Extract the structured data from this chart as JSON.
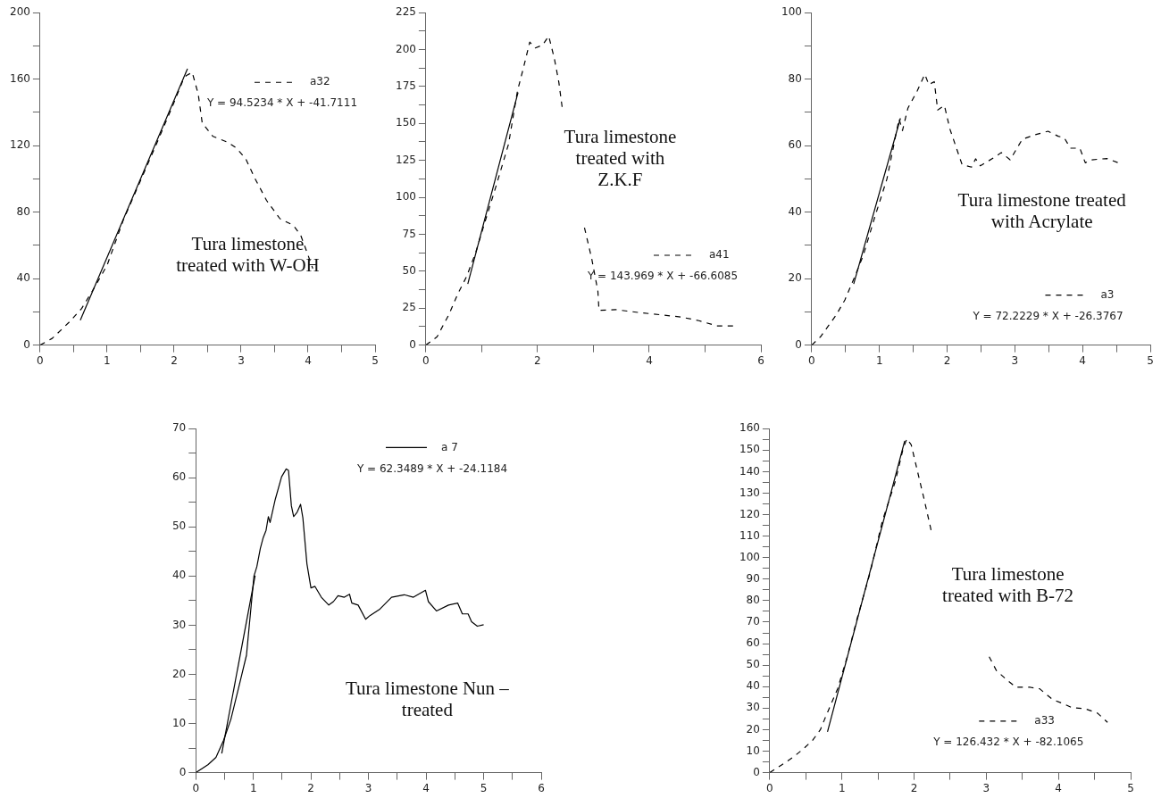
{
  "chart_data": [
    {
      "type": "line",
      "marker": "none",
      "legend": "top right",
      "xlim": [
        0,
        5
      ],
      "ylim": [
        0,
        200
      ],
      "xticks": [
        0,
        {
          "value": 0.5,
          "label": null
        },
        1,
        {
          "value": 1.5,
          "label": null
        },
        2,
        {
          "value": 2.5,
          "label": null
        },
        3,
        {
          "value": 3.5,
          "label": null
        },
        4,
        {
          "value": 4.5,
          "label": null
        },
        5
      ],
      "yticks": [
        0,
        {
          "value": 20,
          "label": null
        },
        40,
        {
          "value": 60,
          "label": null
        },
        80,
        {
          "value": 100,
          "label": null
        },
        120,
        {
          "value": 140,
          "label": null
        },
        160,
        {
          "value": 180,
          "label": null
        },
        200
      ],
      "annotations": [
        "Y = 94.5234 * X + -41.7111",
        "Tura limestone treated with W-OH"
      ],
      "series": [
        {
          "name": "a32",
          "color": "#000000",
          "line_style": "dashed",
          "x": [
            0,
            0.18,
            0.44,
            0.62,
            0.78,
            1,
            1.24,
            1.51,
            1.78,
            2.0,
            2.13,
            2.18,
            2.27,
            2.36,
            2.42,
            2.58,
            2.8,
            2.93,
            3.07,
            3.2,
            3.38,
            3.58,
            3.78,
            3.89,
            4.0,
            4.07
          ],
          "values": [
            0,
            4,
            14,
            22,
            32.5,
            48,
            75,
            100,
            125,
            146,
            159,
            162,
            164,
            151,
            133.5,
            125.5,
            122,
            118.5,
            112,
            100.7,
            87,
            76,
            72,
            66,
            54,
            46
          ]
        },
        {
          "type": "line",
          "color": "#000000",
          "line_style": "solid",
          "x": [
            0.6,
            2.2
          ],
          "values": [
            15.0,
            166.2
          ]
        }
      ]
    },
    {
      "type": "line",
      "marker": "none",
      "legend": "bottom right",
      "xlim": [
        0,
        6
      ],
      "ylim": [
        0,
        225
      ],
      "xticks": [
        0,
        {
          "value": 1,
          "label": null
        },
        2,
        {
          "value": 3,
          "label": null
        },
        4,
        {
          "value": 5,
          "label": null
        },
        6
      ],
      "yticks": [
        0,
        {
          "value": 12.5,
          "label": null
        },
        25,
        {
          "value": 37.5,
          "label": null
        },
        50,
        {
          "value": 62.5,
          "label": null
        },
        75,
        {
          "value": 87.5,
          "label": null
        },
        100,
        {
          "value": 112.5,
          "label": null
        },
        125,
        {
          "value": 137.5,
          "label": null
        },
        150,
        {
          "value": 162.5,
          "label": null
        },
        175,
        {
          "value": 187.5,
          "label": null
        },
        200,
        {
          "value": 212.5,
          "label": null
        },
        225
      ],
      "annotations": [
        "Y = 143.969 * X + -66.6085",
        "Tura limestone treated with Z.K.F"
      ],
      "series": [
        {
          "name": "a41",
          "color": "#000000",
          "line_style": "dashed",
          "x": [
            0,
            0.2,
            0.41,
            0.57,
            0.73,
            0.89,
            1.05,
            1.26,
            1.48,
            1.64,
            1.75,
            1.86,
            1.96,
            2.09,
            2.2,
            2.3,
            2.38,
            2.44,
            2.64,
            2.84,
            2.97,
            3.08,
            3.1,
            3.4,
            3.82,
            4.2,
            4.57,
            4.89,
            5.21,
            5.53
          ],
          "values": [
            0,
            5.6,
            20.5,
            34.5,
            46.5,
            62.4,
            82.4,
            108,
            136,
            172,
            188,
            205,
            201,
            203,
            209,
            194,
            178,
            161,
            null,
            79.4,
            58.4,
            36.5,
            23.5,
            24,
            22,
            20.5,
            19,
            16.5,
            13,
            13
          ]
        },
        {
          "type": "line",
          "color": "#000000",
          "line_style": "solid",
          "x": [
            0.75,
            1.65
          ],
          "values": [
            41.4,
            170.9
          ]
        }
      ]
    },
    {
      "type": "line",
      "marker": "none",
      "legend": "bottom right",
      "xlim": [
        0,
        5
      ],
      "ylim": [
        0,
        100
      ],
      "xticks": [
        0,
        {
          "value": 0.5,
          "label": null
        },
        1,
        {
          "value": 1.5,
          "label": null
        },
        2,
        {
          "value": 2.5,
          "label": null
        },
        3,
        {
          "value": 3.5,
          "label": null
        },
        4,
        {
          "value": 4.5,
          "label": null
        },
        5
      ],
      "yticks": [
        0,
        {
          "value": 10,
          "label": null
        },
        20,
        {
          "value": 30,
          "label": null
        },
        40,
        {
          "value": 50,
          "label": null
        },
        60,
        {
          "value": 70,
          "label": null
        },
        80,
        {
          "value": 90,
          "label": null
        },
        100
      ],
      "annotations": [
        "Y = 72.2229 * X + -26.3767",
        "Tura limestone treated with Acrylate"
      ],
      "series": [
        {
          "name": "a3",
          "color": "#000000",
          "line_style": "dashed",
          "x": [
            0,
            0.13,
            0.36,
            0.49,
            0.62,
            0.76,
            0.93,
            1.11,
            1.29,
            1.34,
            1.42,
            1.56,
            1.67,
            1.73,
            1.81,
            1.86,
            1.96,
            2.04,
            2.22,
            2.36,
            2.42,
            2.49,
            2.71,
            2.8,
            2.93,
            3.11,
            3.29,
            3.49,
            3.64,
            3.73,
            3.82,
            3.96,
            4.04,
            4.13,
            4.36,
            4.53
          ],
          "values": [
            0,
            2.5,
            9,
            13.6,
            19.8,
            26.9,
            38.4,
            49.9,
            68,
            64.5,
            71.2,
            76.5,
            81.4,
            78.3,
            79.2,
            70.7,
            72,
            65,
            54.3,
            53.5,
            56,
            53.9,
            56.6,
            57.9,
            55.7,
            61.9,
            63.2,
            64.3,
            62.8,
            62.3,
            59.2,
            59.2,
            54.8,
            55.7,
            56.1,
            54.8
          ]
        },
        {
          "type": "line",
          "color": "#000000",
          "line_style": "solid",
          "x": [
            0.62,
            1.31
          ],
          "values": [
            18.4,
            68.2
          ]
        }
      ]
    },
    {
      "type": "line",
      "marker": "none",
      "legend": "top right",
      "xlim": [
        0,
        6
      ],
      "ylim": [
        0,
        70
      ],
      "xticks": [
        0,
        {
          "value": 0.5,
          "label": null
        },
        1,
        {
          "value": 1.5,
          "label": null
        },
        2,
        {
          "value": 2.5,
          "label": null
        },
        3,
        {
          "value": 3.5,
          "label": null
        },
        4,
        {
          "value": 4.5,
          "label": null
        },
        5,
        {
          "value": 5.5,
          "label": null
        },
        6
      ],
      "yticks": [
        0,
        {
          "value": 5,
          "label": null
        },
        10,
        {
          "value": 15,
          "label": null
        },
        20,
        {
          "value": 25,
          "label": null
        },
        30,
        {
          "value": 35,
          "label": null
        },
        40,
        {
          "value": 45,
          "label": null
        },
        50,
        {
          "value": 55,
          "label": null
        },
        60,
        {
          "value": 65,
          "label": null
        },
        70
      ],
      "annotations": [
        "Y = 62.3489 * X + -24.1184",
        "Tura limestone Nun – treated"
      ],
      "series": [
        {
          "name": "a 7",
          "color": "#000000",
          "line_style": "solid",
          "x": [
            0,
            0.21,
            0.35,
            0.48,
            0.61,
            0.74,
            0.88,
            1.01,
            1.06,
            1.12,
            1.17,
            1.22,
            1.26,
            1.29,
            1.38,
            1.49,
            1.57,
            1.61,
            1.66,
            1.7,
            1.76,
            1.82,
            1.86,
            1.93,
            2.0,
            2.07,
            2.18,
            2.31,
            2.39,
            2.47,
            2.58,
            2.67,
            2.71,
            2.82,
            2.95,
            3.03,
            3.19,
            3.4,
            3.62,
            3.78,
            3.99,
            4.04,
            4.18,
            4.39,
            4.55,
            4.63,
            4.73,
            4.79,
            4.89,
            5.0
          ],
          "values": [
            0,
            1.6,
            3.1,
            6.5,
            10.9,
            17.1,
            23.9,
            40,
            41.9,
            45.6,
            47.8,
            49.3,
            52.1,
            50.9,
            55.6,
            60.2,
            61.8,
            61.5,
            54.3,
            52.1,
            53,
            54.6,
            51.8,
            42.5,
            37.6,
            37.9,
            35.7,
            34.1,
            34.8,
            36,
            35.7,
            36.3,
            34.5,
            34.1,
            31.2,
            32,
            33.2,
            35.7,
            36.2,
            35.7,
            37.1,
            34.8,
            32.9,
            34.1,
            34.5,
            32.3,
            32.3,
            30.7,
            29.8,
            30.1
          ]
        },
        {
          "type": "line",
          "color": "#000000",
          "line_style": "solid",
          "x": [
            0.45,
            1.03
          ],
          "values": [
            3.9,
            40.1
          ]
        }
      ]
    },
    {
      "type": "line",
      "marker": "none",
      "legend": "bottom right",
      "xlim": [
        0,
        5
      ],
      "ylim": [
        0,
        160
      ],
      "xticks": [
        0,
        {
          "value": 0.5,
          "label": null
        },
        1,
        {
          "value": 1.5,
          "label": null
        },
        2,
        {
          "value": 2.5,
          "label": null
        },
        3,
        {
          "value": 3.5,
          "label": null
        },
        4,
        {
          "value": 4.5,
          "label": null
        },
        5
      ],
      "yticks": [
        0,
        {
          "value": 5,
          "label": null
        },
        10,
        {
          "value": 15,
          "label": null
        },
        20,
        {
          "value": 25,
          "label": null
        },
        30,
        {
          "value": 35,
          "label": null
        },
        40,
        {
          "value": 45,
          "label": null
        },
        50,
        {
          "value": 55,
          "label": null
        },
        60,
        {
          "value": 65,
          "label": null
        },
        70,
        {
          "value": 75,
          "label": null
        },
        80,
        {
          "value": 85,
          "label": null
        },
        90,
        {
          "value": 95,
          "label": null
        },
        100,
        {
          "value": 105,
          "label": null
        },
        110,
        {
          "value": 115,
          "label": null
        },
        120,
        {
          "value": 125,
          "label": null
        },
        130,
        {
          "value": 135,
          "label": null
        },
        140,
        {
          "value": 145,
          "label": null
        },
        150,
        {
          "value": 155,
          "label": null
        },
        160
      ],
      "annotations": [
        "Y = 126.432 * X + -82.1065",
        "Tura limestone treated with B-72"
      ],
      "series": [
        {
          "name": "a33",
          "color": "#000000",
          "line_style": "dashed",
          "x": [
            0,
            0.16,
            0.32,
            0.45,
            0.59,
            0.7,
            0.76,
            0.85,
            0.94,
            1.08,
            1.21,
            1.39,
            1.56,
            1.74,
            1.85,
            1.9,
            1.96,
            2.05,
            2.14,
            2.25,
            2.6,
            3.04,
            3.14,
            3.28,
            3.41,
            3.61,
            3.74,
            3.92,
            4.08,
            4.19,
            4.36,
            4.54,
            4.68
          ],
          "values": [
            0,
            3.5,
            7.1,
            10.6,
            14.9,
            19.9,
            24.8,
            31.9,
            39,
            54.6,
            71.6,
            92.9,
            117,
            135.5,
            151,
            155.3,
            152.5,
            139.7,
            127,
            110.6,
            null,
            53.9,
            47.5,
            43.3,
            39.7,
            39.7,
            39,
            34,
            31.9,
            30.2,
            29.8,
            27.7,
            23.4
          ]
        },
        {
          "type": "line",
          "color": "#000000",
          "line_style": "solid",
          "x": [
            0.8,
            1.87
          ],
          "values": [
            19,
            154.3
          ]
        }
      ]
    }
  ]
}
